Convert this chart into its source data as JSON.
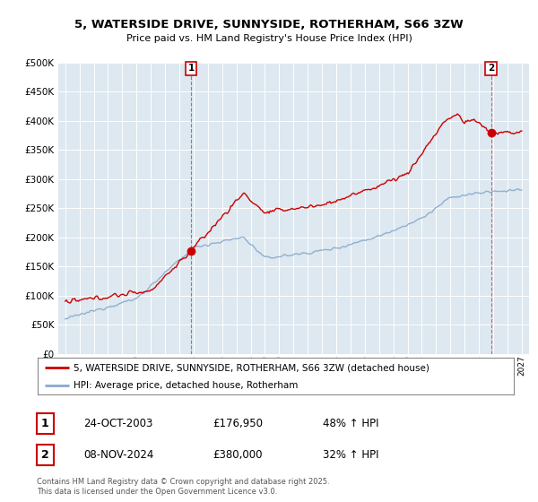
{
  "title1": "5, WATERSIDE DRIVE, SUNNYSIDE, ROTHERHAM, S66 3ZW",
  "title2": "Price paid vs. HM Land Registry's House Price Index (HPI)",
  "legend_label1": "5, WATERSIDE DRIVE, SUNNYSIDE, ROTHERHAM, S66 3ZW (detached house)",
  "legend_label2": "HPI: Average price, detached house, Rotherham",
  "annotation1_date": "24-OCT-2003",
  "annotation1_price": "£176,950",
  "annotation1_hpi": "48% ↑ HPI",
  "annotation2_date": "08-NOV-2024",
  "annotation2_price": "£380,000",
  "annotation2_hpi": "32% ↑ HPI",
  "footer": "Contains HM Land Registry data © Crown copyright and database right 2025.\nThis data is licensed under the Open Government Licence v3.0.",
  "line1_color": "#cc0000",
  "line2_color": "#88aacc",
  "background_color": "#ffffff",
  "plot_bg_color": "#dde8f0",
  "grid_color": "#ffffff",
  "ylim": [
    0,
    500000
  ],
  "yticks": [
    0,
    50000,
    100000,
    150000,
    200000,
    250000,
    300000,
    350000,
    400000,
    450000,
    500000
  ],
  "sale1_x": 2003.83,
  "sale1_y": 176950,
  "sale2_x": 2024.85,
  "sale2_y": 380000,
  "xmin": 1994.5,
  "xmax": 2027.5
}
